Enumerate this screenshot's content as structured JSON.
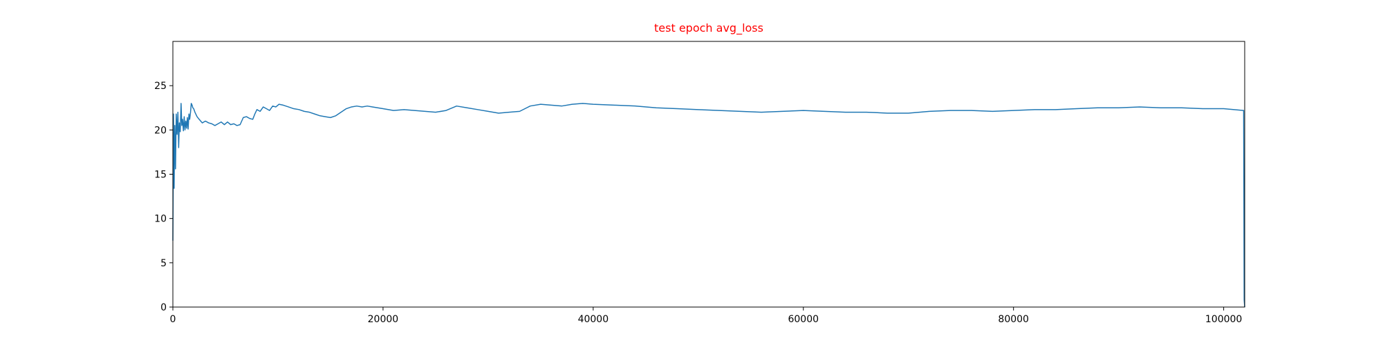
{
  "chart_data": {
    "type": "line",
    "title": "test epoch avg_loss",
    "title_color": "#ff0000",
    "line_color": "#1f77b4",
    "xlabel": "",
    "ylabel": "",
    "xlim": [
      0,
      102000
    ],
    "ylim": [
      0,
      30
    ],
    "grid": false,
    "x_ticks": [
      0,
      20000,
      40000,
      60000,
      80000,
      100000
    ],
    "y_ticks": [
      0,
      5,
      10,
      15,
      20,
      25
    ],
    "series": [
      {
        "x": [
          0,
          60,
          120,
          180,
          250,
          320,
          400,
          480,
          550,
          620,
          700,
          780,
          850,
          920,
          1000,
          1080,
          1150,
          1230,
          1300,
          1380,
          1450,
          1530,
          1600,
          1680,
          1750,
          1830,
          1900,
          1980,
          2100,
          2300,
          2500,
          2800,
          3100,
          3400,
          3700,
          4000,
          4300,
          4600,
          4900,
          5200,
          5500,
          5800,
          6100,
          6400,
          6700,
          7000,
          7300,
          7600,
          7800,
          8000,
          8300,
          8600,
          8900,
          9200,
          9500,
          9800,
          10100,
          10500,
          11000,
          11500,
          12000,
          12500,
          13000,
          13500,
          14000,
          14500,
          15000,
          15500,
          16000,
          16500,
          17000,
          17500,
          18000,
          18500,
          19000,
          20000,
          21000,
          22000,
          23000,
          24000,
          25000,
          26000,
          27000,
          28000,
          29000,
          30000,
          31000,
          32000,
          33000,
          34000,
          35000,
          36000,
          37000,
          38000,
          39000,
          40000,
          42000,
          44000,
          46000,
          48000,
          50000,
          52000,
          54000,
          56000,
          58000,
          60000,
          62000,
          64000,
          66000,
          68000,
          70000,
          72000,
          74000,
          76000,
          78000,
          80000,
          82000,
          84000,
          86000,
          88000,
          90000,
          92000,
          94000,
          96000,
          98000,
          100000,
          101000,
          101900,
          101950,
          102000
        ],
        "y": [
          7.5,
          21.8,
          13.4,
          20.5,
          15.6,
          21.8,
          19.5,
          22.0,
          18.0,
          20.8,
          19.8,
          23.0,
          20.5,
          21.2,
          19.9,
          21.5,
          20.0,
          21.0,
          20.2,
          21.4,
          20.1,
          21.8,
          21.2,
          22.0,
          23.0,
          22.8,
          22.5,
          22.4,
          22.0,
          21.5,
          21.2,
          20.8,
          21.0,
          20.8,
          20.7,
          20.5,
          20.7,
          20.9,
          20.6,
          20.9,
          20.6,
          20.7,
          20.5,
          20.6,
          21.4,
          21.5,
          21.3,
          21.2,
          21.8,
          22.3,
          22.1,
          22.6,
          22.4,
          22.2,
          22.7,
          22.6,
          22.9,
          22.8,
          22.6,
          22.4,
          22.3,
          22.1,
          22.0,
          21.8,
          21.6,
          21.5,
          21.4,
          21.6,
          22.0,
          22.4,
          22.6,
          22.7,
          22.6,
          22.7,
          22.6,
          22.4,
          22.2,
          22.3,
          22.2,
          22.1,
          22.0,
          22.2,
          22.7,
          22.5,
          22.3,
          22.1,
          21.9,
          22.0,
          22.1,
          22.7,
          22.9,
          22.8,
          22.7,
          22.9,
          23.0,
          22.9,
          22.8,
          22.7,
          22.5,
          22.4,
          22.3,
          22.2,
          22.1,
          22.0,
          22.1,
          22.2,
          22.1,
          22.0,
          22.0,
          21.9,
          21.9,
          22.1,
          22.2,
          22.2,
          22.1,
          22.2,
          22.3,
          22.3,
          22.4,
          22.5,
          22.5,
          22.6,
          22.5,
          22.5,
          22.4,
          22.4,
          22.3,
          22.2,
          0.8,
          0.0
        ]
      }
    ]
  }
}
